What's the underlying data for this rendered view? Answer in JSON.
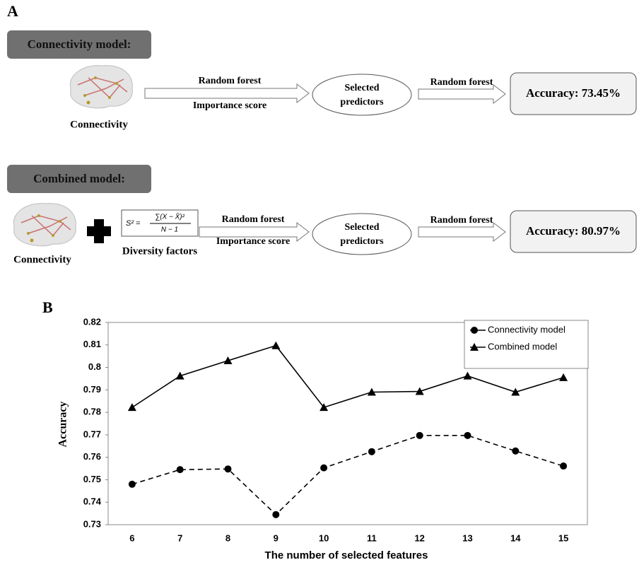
{
  "panel_a": {
    "label": "A",
    "rows": [
      {
        "model": "Connectivity model:",
        "inputs": [
          "Connectivity"
        ],
        "arrow1": [
          "Random forest",
          "Importance score"
        ],
        "node": [
          "Selected",
          "predictors"
        ],
        "arrow2": "Random forest",
        "result": "Accuracy: 73.45%"
      },
      {
        "model": "Combined model:",
        "inputs": [
          "Connectivity",
          "Diversity factors"
        ],
        "formula": {
          "lhs": "S² =",
          "numerator": "∑(X − X̄)²",
          "denominator": "N − 1"
        },
        "arrow1": [
          "Random forest",
          "Importance score"
        ],
        "node": [
          "Selected",
          "predictors"
        ],
        "arrow2": "Random forest",
        "result": "Accuracy: 80.97%"
      }
    ]
  },
  "panel_b_label": "B",
  "chart_data": {
    "type": "line",
    "x_label": "The number of selected features",
    "y_label": "Accuracy",
    "categories": [
      "6",
      "7",
      "8",
      "9",
      "10",
      "11",
      "12",
      "13",
      "14",
      "15"
    ],
    "series": [
      {
        "name": "Connectivity model",
        "color": "#000000",
        "line_style": "dashed",
        "marker": "circle",
        "values": [
          0.748,
          0.7545,
          0.7548,
          0.7345,
          0.7553,
          0.7625,
          0.7697,
          0.7697,
          0.7628,
          0.7561
        ]
      },
      {
        "name": "Combined model",
        "color": "#000000",
        "line_style": "solid",
        "marker": "triangle",
        "values": [
          0.7822,
          0.7962,
          0.803,
          0.8097,
          0.7822,
          0.789,
          0.7893,
          0.7962,
          0.789,
          0.7955
        ]
      }
    ],
    "ylim": [
      0.73,
      0.82
    ],
    "yticks": [
      0.73,
      0.74,
      0.75,
      0.76,
      0.77,
      0.78,
      0.79,
      0.8,
      0.81,
      0.82
    ],
    "grid": false,
    "legend": "upper right"
  }
}
